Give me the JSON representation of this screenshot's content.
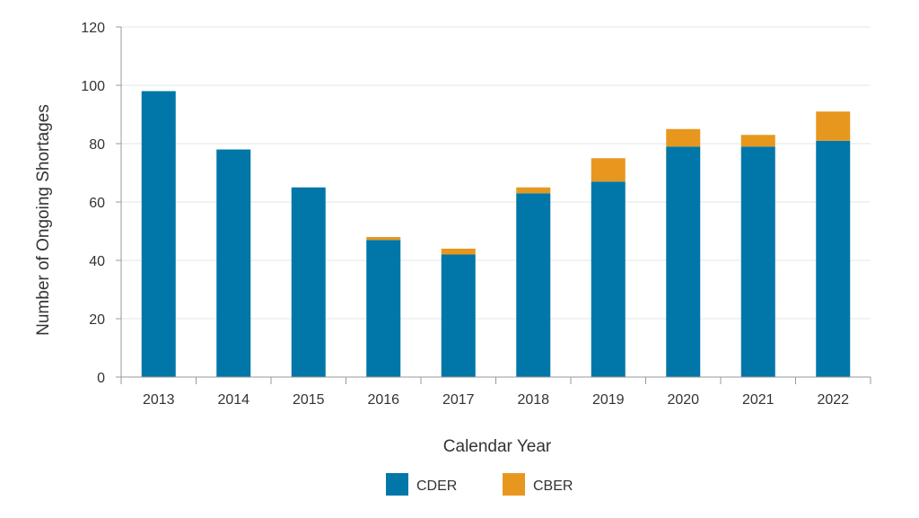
{
  "chart_data": {
    "type": "bar",
    "stacked": true,
    "categories": [
      "2013",
      "2014",
      "2015",
      "2016",
      "2017",
      "2018",
      "2019",
      "2020",
      "2021",
      "2022"
    ],
    "series": [
      {
        "name": "CDER",
        "color": "#0077a8",
        "values": [
          98,
          78,
          65,
          47,
          42,
          63,
          67,
          79,
          79,
          81
        ]
      },
      {
        "name": "CBER",
        "color": "#e8971e",
        "values": [
          0,
          0,
          0,
          1,
          2,
          2,
          8,
          6,
          4,
          10
        ]
      }
    ],
    "xlabel": "Calendar Year",
    "ylabel": "Number of Ongoing Shortages",
    "ylim": [
      0,
      120
    ],
    "yticks": [
      0,
      20,
      40,
      60,
      80,
      100,
      120
    ],
    "grid": true,
    "legend_position": "bottom"
  }
}
